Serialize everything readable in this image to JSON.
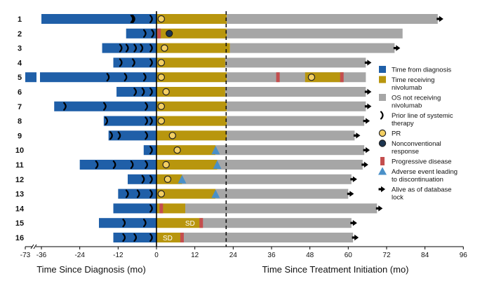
{
  "chart_data": {
    "type": "swimmer",
    "title": "",
    "x_left_label": "Time Since Diagnosis (mo)",
    "x_right_label": "Time Since Treatment Initiation (mo)",
    "left_ticks": [
      {
        "value": -36,
        "label": "-36"
      },
      {
        "value": -24,
        "label": "-24"
      },
      {
        "value": -12,
        "label": "-12"
      },
      {
        "value": 0,
        "label": "0"
      }
    ],
    "left_break_label": "-73",
    "right_ticks": [
      {
        "value": 12,
        "label": "12"
      },
      {
        "value": 24,
        "label": "24"
      },
      {
        "value": 36,
        "label": "36"
      },
      {
        "value": 48,
        "label": "48"
      },
      {
        "value": 60,
        "label": "60"
      },
      {
        "value": 72,
        "label": "72"
      },
      {
        "value": 84,
        "label": "84"
      },
      {
        "value": 96,
        "label": "96"
      }
    ],
    "reference_line_months": 21.8,
    "colors": {
      "diagnosis": "#1f5fa8",
      "nivolumab": "#b8960e",
      "os": "#a6a6a6",
      "pr": "#f3cf62",
      "nonconventional": "#1c3550",
      "progressive": "#c44e4e",
      "adverse": "#4a90c8",
      "alive": "#000000"
    },
    "patients": [
      {
        "id": "1",
        "diag": -36,
        "niv_end": 22,
        "os_end": 88,
        "prior": [
          -7.5,
          -7,
          -1.5
        ],
        "pr": 1.5,
        "alive": true
      },
      {
        "id": "2",
        "diag": -9.5,
        "niv_end": 22,
        "os_end": 77,
        "prior": [
          -3.5,
          -1
        ],
        "nonconv": 4,
        "pd": [
          0.8
        ],
        "alive": false
      },
      {
        "id": "3",
        "diag": -17,
        "niv_end": 23,
        "os_end": 74.5,
        "prior": [
          -11,
          -9,
          -6.5,
          -4.5,
          -1.5
        ],
        "pr": 2.5,
        "alive": true
      },
      {
        "id": "4",
        "diag": -13.5,
        "niv_end": 21.5,
        "os_end": 65.5,
        "prior": [
          -11,
          -7,
          -1.5
        ],
        "pr": 1.5,
        "alive": true
      },
      {
        "id": "5",
        "diag": -40,
        "niv_end": 22,
        "os_end": 65.5,
        "break_bar": true,
        "prior": [
          -15,
          -9.5,
          -3.5
        ],
        "pr": 1.5,
        "retreat": [
          46.5,
          58.5
        ],
        "pr2": 48.5,
        "pd": [
          38,
          58
        ],
        "alive": false
      },
      {
        "id": "6",
        "diag": -12.5,
        "niv_end": 21.5,
        "os_end": 65.5,
        "prior": [
          -6.5,
          -4,
          -1.5
        ],
        "pr": 3,
        "alive": true
      },
      {
        "id": "7",
        "diag": -32,
        "niv_end": 22,
        "os_end": 65.5,
        "prior": [
          -28.5,
          -16,
          -3
        ],
        "pr": 1.5,
        "alive": true
      },
      {
        "id": "8",
        "diag": -16.5,
        "niv_end": 22,
        "os_end": 65,
        "prior": [
          -15.5,
          -3,
          -1.5
        ],
        "pr": 1.5,
        "alive": true
      },
      {
        "id": "9",
        "diag": -15,
        "niv_end": 22,
        "os_end": 62,
        "prior": [
          -14,
          -11.5,
          -3
        ],
        "pr": 5,
        "alive": true
      },
      {
        "id": "10",
        "diag": -4,
        "niv_end": 18.5,
        "os_end": 65,
        "prior": [
          -1.5
        ],
        "pr": 6.5,
        "ae": 18.5,
        "alive": true
      },
      {
        "id": "11",
        "diag": -24,
        "niv_end": 19,
        "os_end": 64.5,
        "prior": [
          -18.5,
          -13,
          -7.5,
          -3
        ],
        "pr": 3,
        "ae": 19,
        "alive": true
      },
      {
        "id": "12",
        "diag": -9,
        "niv_end": 8,
        "os_end": 61,
        "prior": [
          -4,
          -1.5
        ],
        "pr": 3.5,
        "ae": 8,
        "alive": true
      },
      {
        "id": "13",
        "diag": -12,
        "niv_end": 18.5,
        "os_end": 60,
        "prior": [
          -9,
          -5.5,
          -1.5
        ],
        "pr": 1.5,
        "ae": 18.5,
        "alive": true
      },
      {
        "id": "14",
        "diag": -13.5,
        "niv_end": 9,
        "os_end": 69,
        "prior": [
          -1.5
        ],
        "pd": [
          1.5
        ],
        "alive": true
      },
      {
        "id": "15",
        "diag": -18,
        "niv_end": 14.5,
        "os_end": 61,
        "prior": [
          -10,
          -3.5
        ],
        "sd": 10.5,
        "pd": [
          14
        ],
        "alive": true
      },
      {
        "id": "16",
        "diag": -13.5,
        "niv_end": 8.5,
        "os_end": 61.5,
        "prior": [
          -10,
          -6.5,
          -1.5
        ],
        "sd": 3.5,
        "pd": [
          8
        ],
        "alive": true
      }
    ],
    "sd_label": "SD",
    "legend": [
      {
        "key": "diagnosis",
        "label": "Time from diagnosis",
        "shape": "square"
      },
      {
        "key": "nivolumab",
        "label": "Time receiving nivolumab",
        "shape": "square"
      },
      {
        "key": "os",
        "label": "OS not receiving nivolumab",
        "shape": "square"
      },
      {
        "key": "prior",
        "label": "Prior line of systemic therapy",
        "shape": "chevron"
      },
      {
        "key": "pr",
        "label": "PR",
        "shape": "circle"
      },
      {
        "key": "nonconventional",
        "label": "Nonconventional response",
        "shape": "circle"
      },
      {
        "key": "progressive",
        "label": "Progressive disease",
        "shape": "rect"
      },
      {
        "key": "adverse",
        "label": "Adverse event leading to discontinuation",
        "shape": "triangle"
      },
      {
        "key": "alive",
        "label": "Alive as of database lock",
        "shape": "arrow"
      }
    ]
  }
}
